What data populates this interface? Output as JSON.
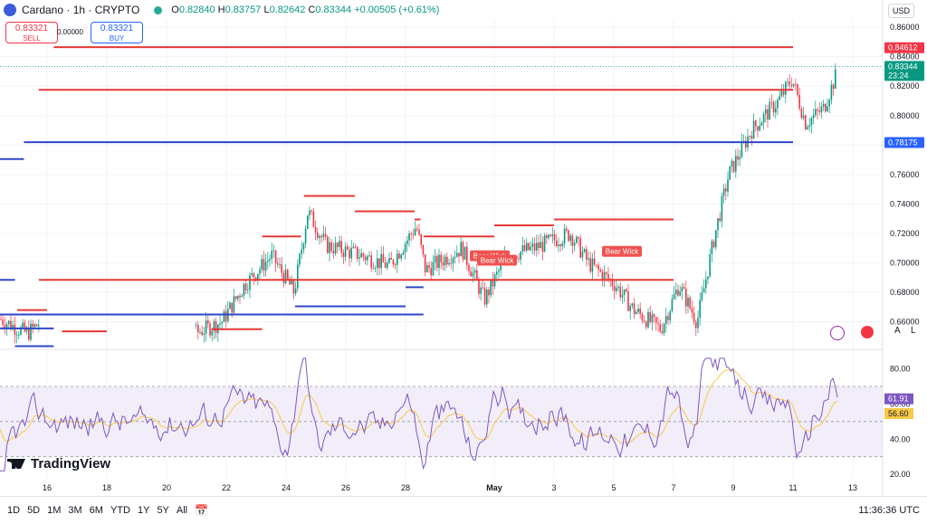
{
  "header": {
    "symbol": "Cardano · 1h · CRYPTO",
    "o_label": "O",
    "o": "0.82840",
    "h_label": "H",
    "h": "0.83757",
    "l_label": "L",
    "l": "0.82642",
    "c_label": "C",
    "c": "0.83344",
    "change": "+0.00505 (+0.61%)",
    "currency": "USD"
  },
  "trade": {
    "sell_price": "0.83321",
    "sell_label": "SELL",
    "spread": "0.00000",
    "buy_price": "0.83321",
    "buy_label": "BUY"
  },
  "brand": "TradingView",
  "colors": {
    "up": "#089981",
    "down": "#f23645",
    "resistance": "#e53935",
    "support": "#2f47c7",
    "rsi": "#7e57c2",
    "rsi_ma": "#f7c948",
    "rsi_band": "#ede7f6"
  },
  "chart_data": [
    {
      "type": "candlestick",
      "x_labels": [
        "16",
        "18",
        "20",
        "22",
        "24",
        "26",
        "28",
        "May",
        "3",
        "5",
        "7",
        "9",
        "11",
        "13"
      ],
      "y_ticks": [
        "0.86000",
        "0.84000",
        "0.82000",
        "0.80000",
        "0.78000",
        "0.76000",
        "0.74000",
        "0.72000",
        "0.70000",
        "0.68000",
        "0.66000"
      ],
      "ylim": [
        0.645,
        0.865
      ],
      "price_labels": [
        {
          "value": "0.84612",
          "color": "#f23645"
        },
        {
          "value": "0.83344",
          "color": "#089981",
          "sub": "23:24"
        },
        {
          "value": "0.78175",
          "color": "#2962ff"
        }
      ],
      "resistance_levels": [
        {
          "x0": "15",
          "x1": "16",
          "y": 0.668
        },
        {
          "x0": "16.5",
          "x1": "18",
          "y": 0.6535
        },
        {
          "x0": "21.5",
          "x1": "23.2",
          "y": 0.655
        },
        {
          "x0": "23.2",
          "x1": "24.5",
          "y": 0.718
        },
        {
          "x0": "24.6",
          "x1": "26.3",
          "y": 0.7455
        },
        {
          "x0": "26.3",
          "x1": "28.3",
          "y": 0.735
        },
        {
          "x0": "28.3",
          "x1": "29.5",
          "y": 0.7295
        },
        {
          "x0": "29.6",
          "x1": "May",
          "y": 0.718
        },
        {
          "x0": "May",
          "x1": "3",
          "y": 0.7255
        },
        {
          "x0": "3",
          "x1": "7",
          "y": 0.7295
        },
        {
          "x0": "7",
          "x1": "9.3",
          "y": 0.6885
        },
        {
          "x0": "9.3",
          "x1": "11",
          "y": 0.8175
        },
        {
          "x0": "11",
          "x1": "11.8",
          "y": 0.8465
        }
      ],
      "support_levels": [
        {
          "x0": "24.3",
          "x1": "28",
          "y": 0.6705
        },
        {
          "x0": "28",
          "x1": "29.6",
          "y": 0.6835
        },
        {
          "x0": "29.6",
          "x1": "2",
          "y": 0.665
        },
        {
          "x0": "2",
          "x1": "6.5",
          "y": 0.6885
        },
        {
          "x0": "6.5",
          "x1": "7.8",
          "y": 0.6435
        },
        {
          "x0": "7.8",
          "x1": "10",
          "y": 0.6555
        },
        {
          "x0": "10",
          "x1": "10.8",
          "y": 0.7705
        },
        {
          "x0": "10.8",
          "x1": "11",
          "y": 0.782
        }
      ],
      "annotations": [
        "Bear Wick",
        "Bear Wick",
        "Bear Wick"
      ]
    },
    {
      "type": "line",
      "name": "RSI",
      "y_ticks": [
        "80.00",
        "60.00",
        "40.00",
        "20.00"
      ],
      "ylim": [
        18,
        88
      ],
      "band": [
        30,
        70
      ],
      "mid": 50,
      "current_values": [
        "61.91",
        "56.60"
      ]
    }
  ],
  "timeframes": [
    "1D",
    "5D",
    "1M",
    "3M",
    "6M",
    "YTD",
    "1Y",
    "5Y",
    "All"
  ],
  "clock": "11:36:36 UTC",
  "scale_buttons": [
    "A",
    "L"
  ]
}
